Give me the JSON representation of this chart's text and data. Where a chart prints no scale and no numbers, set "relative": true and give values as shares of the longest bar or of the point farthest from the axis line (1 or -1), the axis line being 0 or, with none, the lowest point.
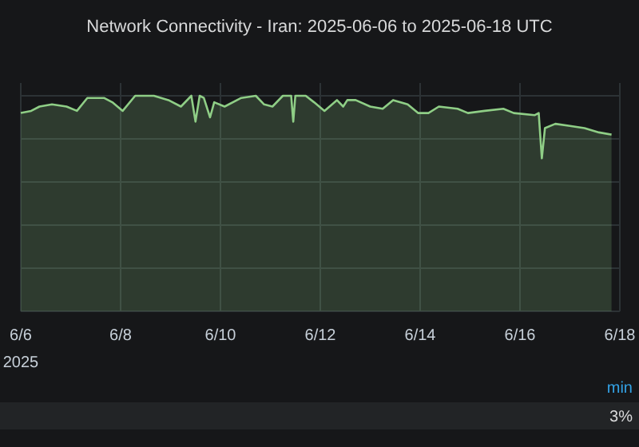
{
  "chart_data": {
    "type": "area",
    "title": "Network Connectivity - Iran: 2025-06-06 to 2025-06-18 UTC",
    "relative": true,
    "grid": true,
    "color": "#8fce86",
    "x": [
      "2025-06-06T00:00",
      "2025-06-06T05:00",
      "2025-06-06T09:00",
      "2025-06-06T15:00",
      "2025-06-06T22:00",
      "2025-06-07T03:00",
      "2025-06-07T08:00",
      "2025-06-07T16:00",
      "2025-06-07T20:00",
      "2025-06-08T01:00",
      "2025-06-08T07:00",
      "2025-06-08T16:00",
      "2025-06-08T23:00",
      "2025-06-09T05:00",
      "2025-06-09T10:00",
      "2025-06-09T12:00",
      "2025-06-09T14:00",
      "2025-06-09T16:00",
      "2025-06-09T19:00",
      "2025-06-09T21:00",
      "2025-06-10T02:00",
      "2025-06-10T10:00",
      "2025-06-10T17:00",
      "2025-06-10T21:00",
      "2025-06-11T01:00",
      "2025-06-11T06:00",
      "2025-06-11T10:00",
      "2025-06-11T11:00",
      "2025-06-11T12:00",
      "2025-06-11T17:00",
      "2025-06-11T21:00",
      "2025-06-12T02:00",
      "2025-06-12T08:00",
      "2025-06-12T11:00",
      "2025-06-12T13:00",
      "2025-06-12T17:00",
      "2025-06-13T00:00",
      "2025-06-13T06:00",
      "2025-06-13T11:00",
      "2025-06-13T18:00",
      "2025-06-13T23:00",
      "2025-06-14T04:00",
      "2025-06-14T09:00",
      "2025-06-14T18:00",
      "2025-06-14T23:00",
      "2025-06-15T07:00",
      "2025-06-15T16:00",
      "2025-06-15T21:00",
      "2025-06-16T07:00",
      "2025-06-16T09:00",
      "2025-06-16T10:30",
      "2025-06-16T12:00",
      "2025-06-16T17:00",
      "2025-06-17T00:00",
      "2025-06-17T07:00",
      "2025-06-17T14:00",
      "2025-06-17T20:00"
    ],
    "values": [
      0.92,
      0.93,
      0.95,
      0.96,
      0.95,
      0.93,
      0.99,
      0.99,
      0.97,
      0.93,
      1.0,
      1.0,
      0.98,
      0.95,
      1.0,
      0.88,
      1.0,
      0.99,
      0.9,
      0.97,
      0.95,
      0.99,
      1.0,
      0.96,
      0.95,
      1.0,
      1.0,
      0.88,
      1.0,
      1.0,
      0.97,
      0.93,
      0.98,
      0.95,
      0.98,
      0.98,
      0.95,
      0.94,
      0.98,
      0.96,
      0.92,
      0.92,
      0.95,
      0.94,
      0.92,
      0.93,
      0.94,
      0.92,
      0.91,
      0.92,
      0.71,
      0.85,
      0.87,
      0.86,
      0.85,
      0.83,
      0.82
    ],
    "xlim": [
      "2025-06-06",
      "2025-06-18"
    ],
    "xticks": [
      {
        "value": "2025-06-06",
        "label": "6/6"
      },
      {
        "value": "2025-06-08",
        "label": "6/8"
      },
      {
        "value": "2025-06-10",
        "label": "6/10"
      },
      {
        "value": "2025-06-12",
        "label": "6/12"
      },
      {
        "value": "2025-06-14",
        "label": "6/14"
      },
      {
        "value": "2025-06-16",
        "label": "6/16"
      },
      {
        "value": "2025-06-18",
        "label": "6/18"
      }
    ],
    "annotations": [
      "2025",
      "min",
      "3%"
    ]
  }
}
